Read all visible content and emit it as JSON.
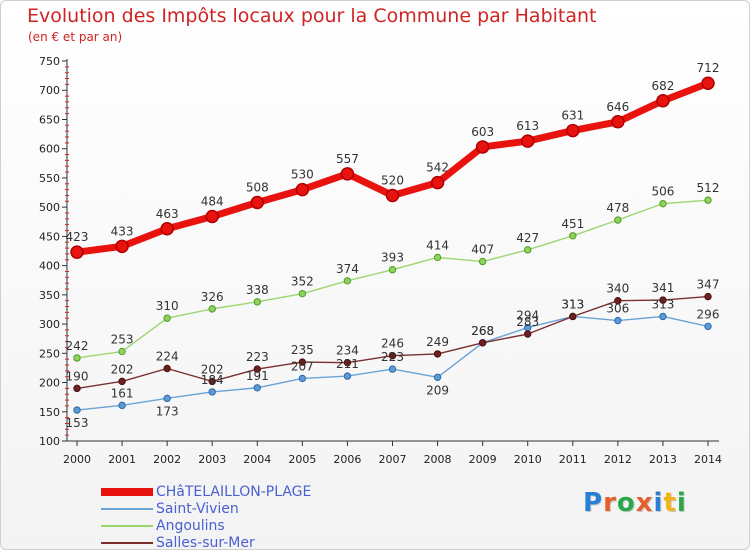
{
  "title": "Evolution des Impôts locaux pour la Commune par Habitant",
  "subtitle": "(en € et par an)",
  "brand": [
    "P",
    "r",
    "o",
    "x",
    "i",
    "t",
    "i"
  ],
  "brand_colors": [
    "#2a7fd4",
    "#e4612b",
    "#2aa84a",
    "#e4612b",
    "#2a7fd4",
    "#f2b318",
    "#2aa84a"
  ],
  "chart_data": {
    "type": "line",
    "title": "Evolution des Impôts locaux pour la Commune par Habitant",
    "subtitle": "(en € et par an)",
    "xlabel": "",
    "ylabel": "",
    "x": [
      "2000",
      "2001",
      "2002",
      "2003",
      "2004",
      "2005",
      "2006",
      "2007",
      "2008",
      "2009",
      "2010",
      "2011",
      "2012",
      "2013",
      "2014"
    ],
    "y_ticks": [
      "100",
      "150",
      "200",
      "250",
      "300",
      "350",
      "400",
      "450",
      "500",
      "550",
      "600",
      "650",
      "700",
      "750"
    ],
    "ylim": [
      100,
      750
    ],
    "grid": false,
    "legend_position": "bottom-left",
    "series": [
      {
        "name": "CHâTELAILLON-PLAGE",
        "color": "#e8120f",
        "values": [
          423,
          433,
          463,
          484,
          508,
          530,
          557,
          520,
          542,
          603,
          613,
          631,
          646,
          682,
          712
        ],
        "labels": [
          "423",
          "433",
          "463",
          "484",
          "508",
          "530",
          "557",
          "520",
          "542",
          "603",
          "613",
          "631",
          "646",
          "682",
          "712"
        ]
      },
      {
        "name": "Saint-Vivien",
        "color": "#6aa3d6",
        "values": [
          153,
          161,
          173,
          184,
          191,
          207,
          211,
          223,
          209,
          268,
          294,
          313,
          306,
          313,
          296
        ],
        "labels": [
          "153",
          "161",
          "173",
          "184",
          "191",
          "207",
          "211",
          "223",
          "209",
          "268",
          "294",
          "313",
          "306",
          "313",
          "296"
        ]
      },
      {
        "name": "Angoulins",
        "color": "#9dd56f",
        "values": [
          242,
          253,
          310,
          326,
          338,
          352,
          374,
          393,
          414,
          407,
          427,
          451,
          478,
          506,
          512
        ],
        "labels": [
          "242",
          "253",
          "310",
          "326",
          "338",
          "352",
          "374",
          "393",
          "414",
          "407",
          "427",
          "451",
          "478",
          "506",
          "512"
        ]
      },
      {
        "name": "Salles-sur-Mer",
        "color": "#7a2e2e",
        "values": [
          190,
          202,
          224,
          202,
          223,
          235,
          234,
          246,
          249,
          268,
          283,
          313,
          340,
          341,
          347
        ],
        "labels": [
          "190",
          "202",
          "224",
          "202",
          "223",
          "235",
          "234",
          "246",
          "249",
          "268",
          "283",
          "313",
          "340",
          "341",
          "347"
        ]
      }
    ]
  }
}
